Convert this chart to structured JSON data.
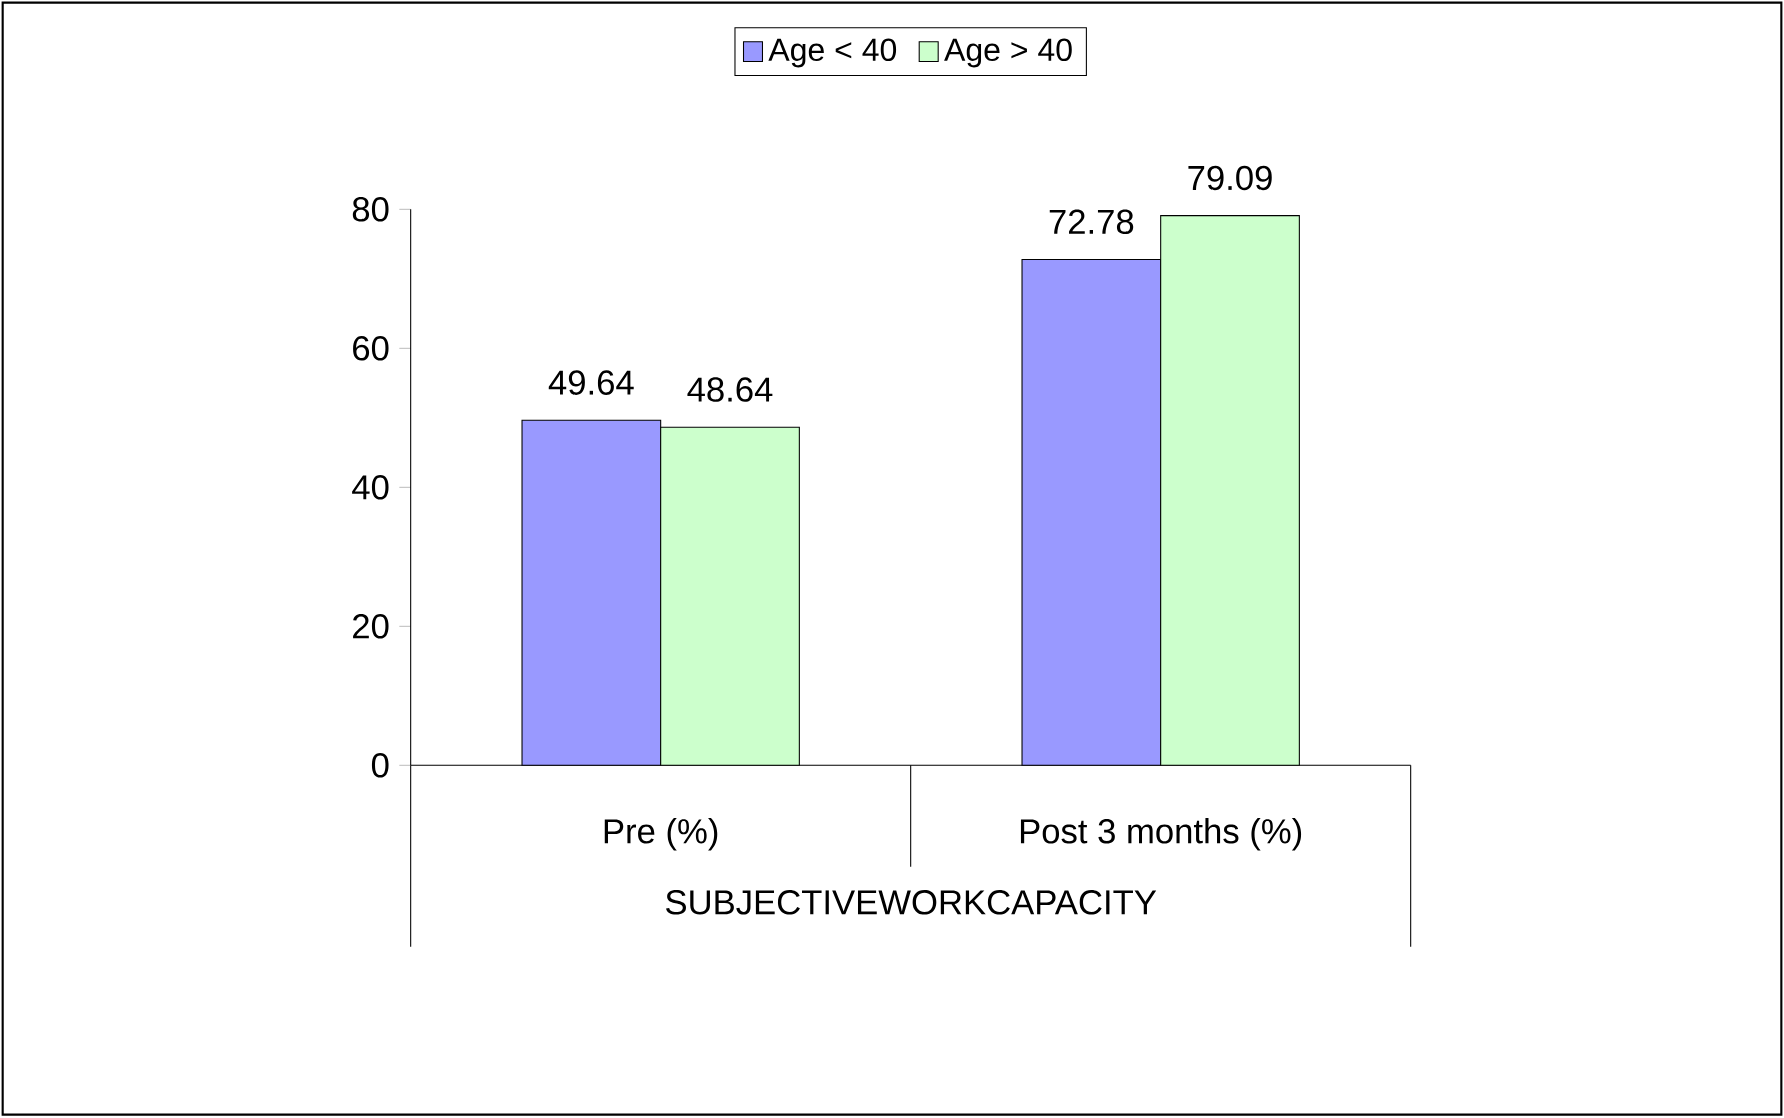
{
  "chart_data": {
    "type": "bar",
    "xlabel": "SUBJECTIVEWORKCAPACITY",
    "categories": [
      "Pre (%)",
      "Post 3 months (%)"
    ],
    "series": [
      {
        "name": "Age < 40",
        "color": "#9999ff",
        "values": [
          49.64,
          72.78
        ]
      },
      {
        "name": "Age > 40",
        "color": "#ccffcc",
        "values": [
          48.64,
          79.09
        ]
      }
    ],
    "ylim": [
      0,
      80
    ],
    "yticks": [
      0,
      20,
      40,
      60,
      80
    ],
    "data_labels": true,
    "legend": "top"
  }
}
